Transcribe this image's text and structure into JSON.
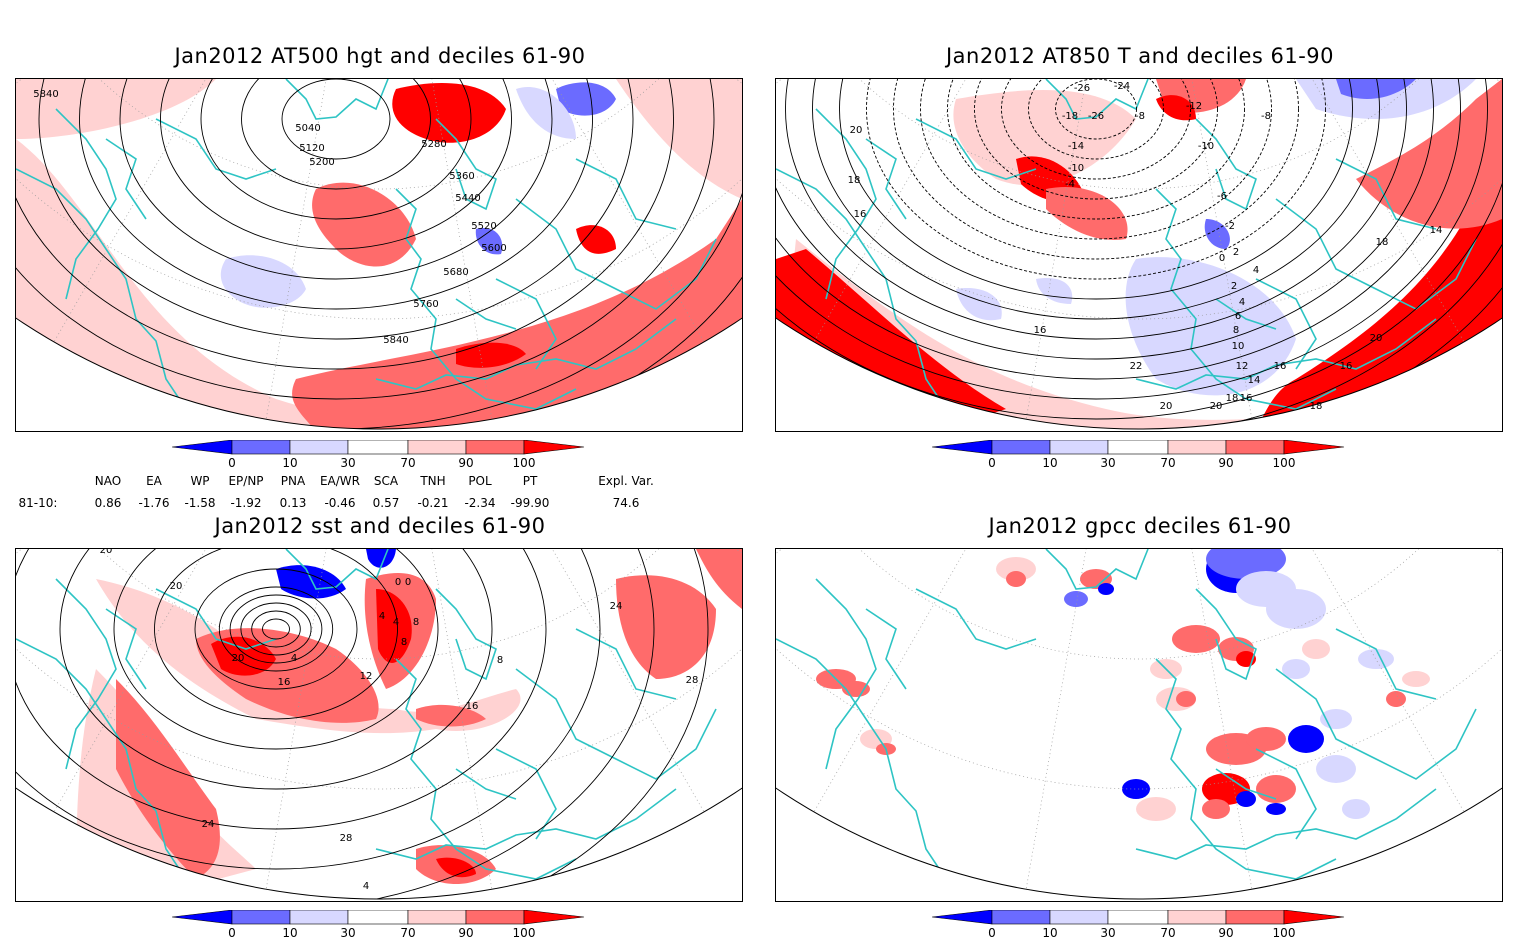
{
  "panels": [
    {
      "id": "z500",
      "title": "Jan2012 AT500 hgt and deciles 61-90",
      "contour_labels": [
        "5840",
        "5040",
        "5120",
        "5200",
        "5280",
        "5360",
        "5440",
        "5520",
        "5600",
        "5680",
        "5760",
        "5840"
      ]
    },
    {
      "id": "t850",
      "title": "Jan2012 AT850 T and deciles 61-90",
      "contour_labels": [
        "-26",
        "-24",
        "-18",
        "-26",
        "-14",
        "-10",
        "-4",
        "-8",
        "-12",
        "-8",
        "-10",
        "-6",
        "-2",
        "0",
        "2",
        "4",
        "2",
        "4",
        "6",
        "8",
        "10",
        "12",
        "14",
        "16",
        "18",
        "20",
        "22",
        "20",
        "20",
        "18",
        "16",
        "16",
        "18",
        "14",
        "16",
        "16",
        "18",
        "20"
      ]
    },
    {
      "id": "sst",
      "title": "Jan2012 sst and deciles 61-90",
      "contour_labels": [
        "20",
        "20",
        "0",
        "4",
        "4",
        "8",
        "20",
        "4",
        "16",
        "12",
        "16",
        "8",
        "24",
        "28",
        "24",
        "28",
        "4",
        "8",
        "0"
      ]
    },
    {
      "id": "gpcc",
      "title": "Jan2012 gpcc deciles 61-90",
      "contour_labels": []
    }
  ],
  "legend": {
    "ticks": [
      "0",
      "10",
      "30",
      "70",
      "90",
      "100"
    ],
    "colors": [
      "#0000ff",
      "#6b6bff",
      "#d8d8ff",
      "#ffffff",
      "#ffd2d2",
      "#ff6b6b",
      "#ff0000"
    ]
  },
  "indices": {
    "headers": [
      "NAO",
      "EA",
      "WP",
      "EP/NP",
      "PNA",
      "EA/WR",
      "SCA",
      "TNH",
      "POL",
      "PT",
      "Expl. Var."
    ],
    "row_label": "81-10:",
    "values": [
      "0.86",
      "-1.76",
      "-1.58",
      "-1.92",
      "0.13",
      "-0.46",
      "0.57",
      "-0.21",
      "-2.34",
      "-99.90",
      "74.6"
    ]
  }
}
